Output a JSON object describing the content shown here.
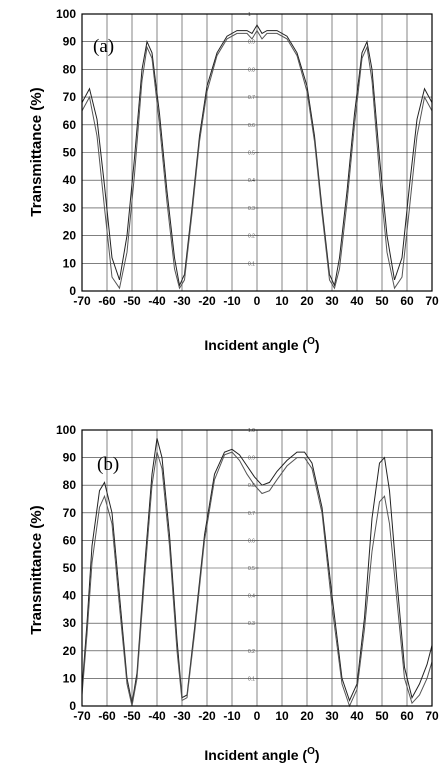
{
  "chart_data": [
    {
      "type": "line",
      "panel_label": "(a)",
      "xlabel": "Incident angle (",
      "xlabel_unit": "O",
      "xlabel_close": ")",
      "ylabel": "Transmittance (%)",
      "xlim": [
        -70,
        70
      ],
      "ylim": [
        0,
        100
      ],
      "x_ticks": [
        "-70",
        "-60",
        "-50",
        "-40",
        "-30",
        "-20",
        "-10",
        "0",
        "10",
        "20",
        "30",
        "40",
        "50",
        "60",
        "70"
      ],
      "y_ticks": [
        "0",
        "10",
        "20",
        "30",
        "40",
        "50",
        "60",
        "70",
        "80",
        "90",
        "100"
      ],
      "inset_ticks": [
        "1",
        "0.9",
        "0.8",
        "0.7",
        "0.6",
        "0.5",
        "0.4",
        "0.3",
        "0.2",
        "0.1"
      ],
      "grid": true,
      "series": [
        {
          "points": [
            [
              -70,
              68
            ],
            [
              -67,
              73
            ],
            [
              -64,
              62
            ],
            [
              -61,
              38
            ],
            [
              -58,
              12
            ],
            [
              -55,
              4
            ],
            [
              -52,
              20
            ],
            [
              -49,
              48
            ],
            [
              -46,
              80
            ],
            [
              -44,
              90
            ],
            [
              -42,
              86
            ],
            [
              -39,
              64
            ],
            [
              -36,
              36
            ],
            [
              -33,
              12
            ],
            [
              -31,
              2
            ],
            [
              -29,
              6
            ],
            [
              -26,
              30
            ],
            [
              -23,
              56
            ],
            [
              -20,
              74
            ],
            [
              -16,
              86
            ],
            [
              -12,
              92
            ],
            [
              -8,
              94
            ],
            [
              -4,
              94
            ],
            [
              -2,
              93
            ],
            [
              0,
              96
            ],
            [
              2,
              93
            ],
            [
              4,
              94
            ],
            [
              8,
              94
            ],
            [
              12,
              92
            ],
            [
              16,
              86
            ],
            [
              20,
              74
            ],
            [
              23,
              56
            ],
            [
              26,
              30
            ],
            [
              29,
              6
            ],
            [
              31,
              2
            ],
            [
              33,
              12
            ],
            [
              36,
              36
            ],
            [
              39,
              64
            ],
            [
              42,
              86
            ],
            [
              44,
              90
            ],
            [
              46,
              80
            ],
            [
              49,
              48
            ],
            [
              52,
              20
            ],
            [
              55,
              4
            ],
            [
              58,
              12
            ],
            [
              61,
              38
            ],
            [
              64,
              62
            ],
            [
              67,
              73
            ],
            [
              70,
              68
            ]
          ]
        },
        {
          "points": [
            [
              -70,
              65
            ],
            [
              -67,
              70
            ],
            [
              -64,
              56
            ],
            [
              -61,
              30
            ],
            [
              -58,
              5
            ],
            [
              -55,
              1
            ],
            [
              -52,
              14
            ],
            [
              -49,
              42
            ],
            [
              -46,
              76
            ],
            [
              -44,
              88
            ],
            [
              -42,
              84
            ],
            [
              -39,
              60
            ],
            [
              -36,
              32
            ],
            [
              -33,
              8
            ],
            [
              -31,
              1
            ],
            [
              -29,
              4
            ],
            [
              -26,
              28
            ],
            [
              -23,
              54
            ],
            [
              -20,
              72
            ],
            [
              -16,
              85
            ],
            [
              -12,
              91
            ],
            [
              -8,
              93
            ],
            [
              -4,
              93
            ],
            [
              -2,
              91
            ],
            [
              0,
              94
            ],
            [
              2,
              91
            ],
            [
              4,
              93
            ],
            [
              8,
              93
            ],
            [
              12,
              91
            ],
            [
              16,
              85
            ],
            [
              20,
              72
            ],
            [
              23,
              54
            ],
            [
              26,
              28
            ],
            [
              29,
              4
            ],
            [
              31,
              1
            ],
            [
              33,
              8
            ],
            [
              36,
              32
            ],
            [
              39,
              60
            ],
            [
              42,
              84
            ],
            [
              44,
              88
            ],
            [
              46,
              76
            ],
            [
              49,
              42
            ],
            [
              52,
              14
            ],
            [
              55,
              1
            ],
            [
              58,
              5
            ],
            [
              61,
              30
            ],
            [
              64,
              56
            ],
            [
              67,
              70
            ],
            [
              70,
              65
            ]
          ]
        }
      ]
    },
    {
      "type": "line",
      "panel_label": "(b)",
      "xlabel": "Incident angle (",
      "xlabel_unit": "O",
      "xlabel_close": ")",
      "ylabel": "Transmittance (%)",
      "xlim": [
        -70,
        70
      ],
      "ylim": [
        0,
        100
      ],
      "x_ticks": [
        "-70",
        "-60",
        "-50",
        "-40",
        "-30",
        "-20",
        "-10",
        "0",
        "10",
        "20",
        "30",
        "40",
        "50",
        "60",
        "70"
      ],
      "y_ticks": [
        "0",
        "10",
        "20",
        "30",
        "40",
        "50",
        "60",
        "70",
        "80",
        "90",
        "100"
      ],
      "inset_ticks": [
        "1.0",
        "0.9",
        "0.8",
        "0.7",
        "0.6",
        "0.5",
        "0.4",
        "0.3",
        "0.2",
        "0.1"
      ],
      "grid": true,
      "series": [
        {
          "points": [
            [
              -70,
              6
            ],
            [
              -68,
              30
            ],
            [
              -66,
              58
            ],
            [
              -63,
              78
            ],
            [
              -61,
              81
            ],
            [
              -58,
              70
            ],
            [
              -55,
              40
            ],
            [
              -52,
              10
            ],
            [
              -50,
              1
            ],
            [
              -48,
              12
            ],
            [
              -45,
              50
            ],
            [
              -42,
              84
            ],
            [
              -40,
              97
            ],
            [
              -38,
              90
            ],
            [
              -35,
              62
            ],
            [
              -32,
              24
            ],
            [
              -30,
              3
            ],
            [
              -28,
              4
            ],
            [
              -25,
              28
            ],
            [
              -21,
              62
            ],
            [
              -17,
              84
            ],
            [
              -13,
              92
            ],
            [
              -10,
              93
            ],
            [
              -7,
              91
            ],
            [
              -4,
              87
            ],
            [
              -1,
              83
            ],
            [
              2,
              80
            ],
            [
              5,
              81
            ],
            [
              8,
              85
            ],
            [
              12,
              89
            ],
            [
              16,
              92
            ],
            [
              19,
              92
            ],
            [
              22,
              88
            ],
            [
              26,
              72
            ],
            [
              30,
              40
            ],
            [
              34,
              10
            ],
            [
              37,
              2
            ],
            [
              40,
              8
            ],
            [
              43,
              32
            ],
            [
              46,
              68
            ],
            [
              49,
              88
            ],
            [
              51,
              90
            ],
            [
              53,
              78
            ],
            [
              56,
              45
            ],
            [
              59,
              14
            ],
            [
              62,
              3
            ],
            [
              65,
              8
            ],
            [
              68,
              15
            ],
            [
              70,
              22
            ]
          ]
        },
        {
          "points": [
            [
              -70,
              4
            ],
            [
              -68,
              26
            ],
            [
              -66,
              52
            ],
            [
              -63,
              72
            ],
            [
              -61,
              76
            ],
            [
              -58,
              66
            ],
            [
              -55,
              36
            ],
            [
              -52,
              8
            ],
            [
              -50,
              0
            ],
            [
              -48,
              10
            ],
            [
              -45,
              46
            ],
            [
              -42,
              80
            ],
            [
              -40,
              92
            ],
            [
              -38,
              86
            ],
            [
              -35,
              58
            ],
            [
              -32,
              20
            ],
            [
              -30,
              2
            ],
            [
              -28,
              3
            ],
            [
              -25,
              26
            ],
            [
              -21,
              60
            ],
            [
              -17,
              82
            ],
            [
              -13,
              91
            ],
            [
              -10,
              92
            ],
            [
              -7,
              89
            ],
            [
              -4,
              84
            ],
            [
              -1,
              80
            ],
            [
              2,
              77
            ],
            [
              5,
              78
            ],
            [
              8,
              82
            ],
            [
              12,
              87
            ],
            [
              16,
              90
            ],
            [
              19,
              90
            ],
            [
              22,
              86
            ],
            [
              26,
              70
            ],
            [
              30,
              36
            ],
            [
              34,
              8
            ],
            [
              37,
              0
            ],
            [
              40,
              6
            ],
            [
              43,
              28
            ],
            [
              46,
              56
            ],
            [
              49,
              74
            ],
            [
              51,
              76
            ],
            [
              53,
              66
            ],
            [
              56,
              38
            ],
            [
              59,
              10
            ],
            [
              62,
              1
            ],
            [
              65,
              4
            ],
            [
              68,
              10
            ],
            [
              70,
              16
            ]
          ]
        }
      ]
    }
  ]
}
